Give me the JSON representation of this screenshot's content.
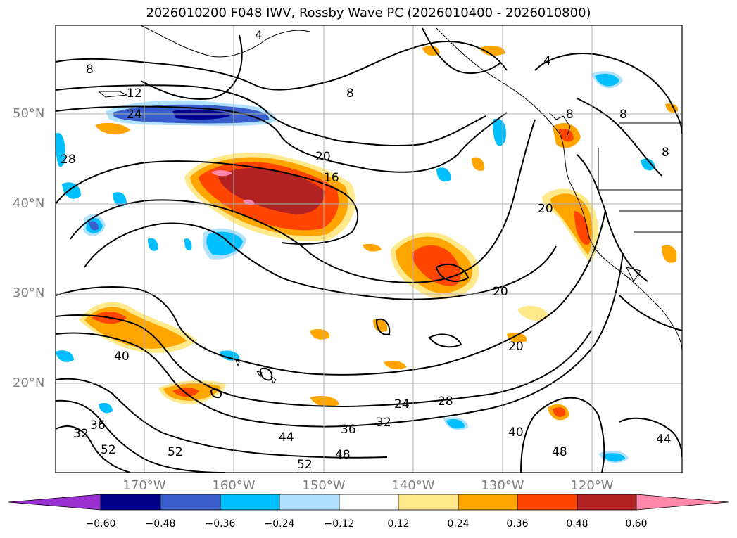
{
  "title": "2026010200 F048 IWV, Rossby Wave PC (2026010400 - 2026010800)",
  "map": {
    "region": "North Pacific",
    "lat_labels": [
      "50°N",
      "40°N",
      "30°N",
      "20°N"
    ],
    "lon_labels": [
      "170°W",
      "160°W",
      "150°W",
      "140°W",
      "130°W",
      "120°W"
    ],
    "contour_labels": [
      {
        "id": "c8a",
        "text": "8"
      },
      {
        "id": "c12",
        "text": "12"
      },
      {
        "id": "c24a",
        "text": "24"
      },
      {
        "id": "c28a",
        "text": "28"
      },
      {
        "id": "c8b",
        "text": "8"
      },
      {
        "id": "c20a",
        "text": "20"
      },
      {
        "id": "c16",
        "text": "16"
      },
      {
        "id": "c4a",
        "text": "4"
      },
      {
        "id": "c4b",
        "text": "4"
      },
      {
        "id": "c8c",
        "text": "8"
      },
      {
        "id": "c8d",
        "text": "8"
      },
      {
        "id": "c8e",
        "text": "8"
      },
      {
        "id": "c20b",
        "text": "20"
      },
      {
        "id": "c20c",
        "text": "20"
      },
      {
        "id": "c20d",
        "text": "20"
      },
      {
        "id": "c40a",
        "text": "40"
      },
      {
        "id": "c24b",
        "text": "24"
      },
      {
        "id": "c28b",
        "text": "28"
      },
      {
        "id": "c32a",
        "text": "32"
      },
      {
        "id": "c36",
        "text": "36"
      },
      {
        "id": "c44a",
        "text": "44"
      },
      {
        "id": "c48a",
        "text": "48"
      },
      {
        "id": "c52a",
        "text": "52"
      },
      {
        "id": "c40b",
        "text": "40"
      },
      {
        "id": "c48b",
        "text": "48"
      },
      {
        "id": "c44b",
        "text": "44"
      },
      {
        "id": "c52b",
        "text": "52"
      },
      {
        "id": "c52c",
        "text": "52"
      },
      {
        "id": "c32b",
        "text": "32"
      },
      {
        "id": "c36b",
        "text": "36"
      }
    ]
  },
  "colorbar": {
    "tick_labels": [
      "−0.60",
      "−0.48",
      "−0.36",
      "−0.24",
      "−0.12",
      "0.12",
      "0.24",
      "0.36",
      "0.48",
      "0.60"
    ],
    "colors": [
      "#9b30d0",
      "#00008b",
      "#3a5fcd",
      "#00bfff",
      "#b0e2ff",
      "#ffffff",
      "#ffe98a",
      "#ffa500",
      "#ff4500",
      "#b22222",
      "#ff88aa"
    ]
  }
}
